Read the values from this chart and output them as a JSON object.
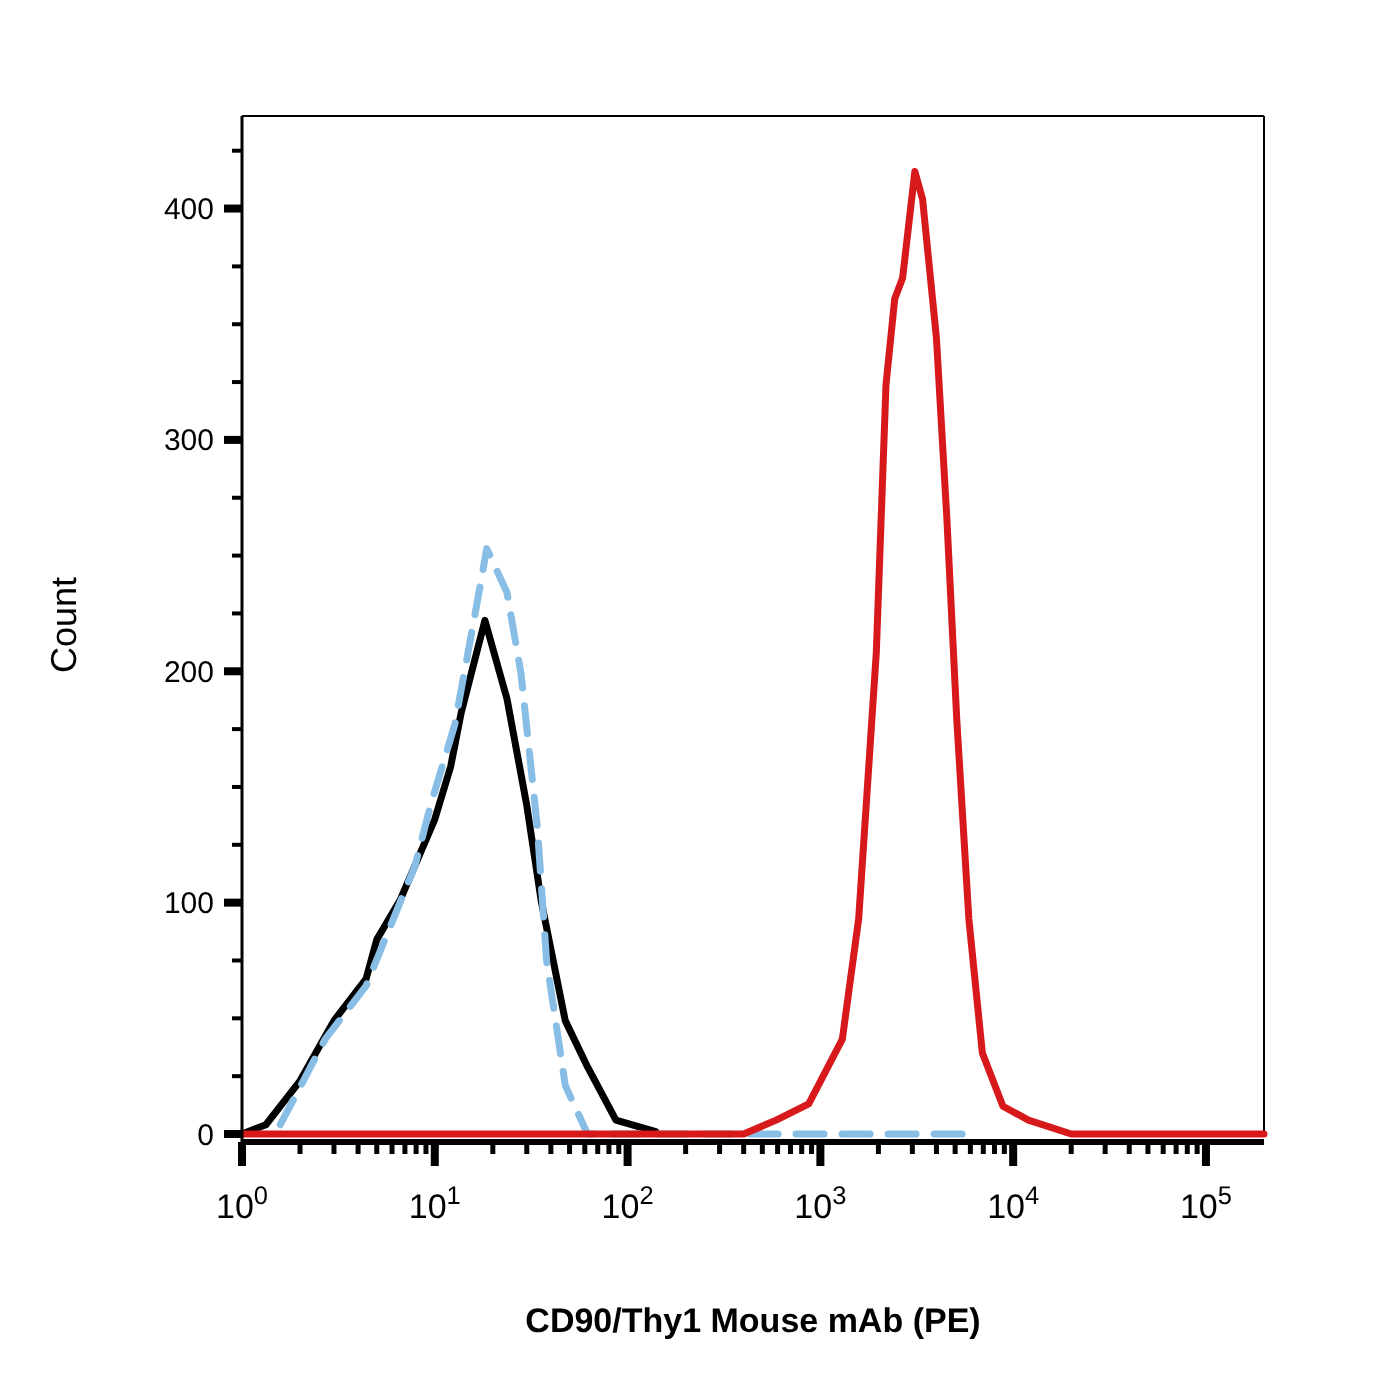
{
  "chart_data": {
    "type": "line",
    "xlabel": "CD90/Thy1 Mouse mAb (PE)",
    "ylabel": "Count",
    "log": "x",
    "xlim": [
      1,
      200000
    ],
    "ylim": [
      0,
      440
    ],
    "xticks": [
      {
        "value": 1,
        "label": "10$^{0}$"
      },
      {
        "value": 2,
        "label": null
      },
      {
        "value": 3,
        "label": null
      },
      {
        "value": 4,
        "label": null
      },
      {
        "value": 5,
        "label": null
      },
      {
        "value": 6,
        "label": null
      },
      {
        "value": 7,
        "label": null
      },
      {
        "value": 8,
        "label": null
      },
      {
        "value": 9,
        "label": null
      },
      {
        "value": 10,
        "label": "10$^{1}$"
      },
      {
        "value": 20,
        "label": null
      },
      {
        "value": 30,
        "label": null
      },
      {
        "value": 40,
        "label": null
      },
      {
        "value": 50,
        "label": null
      },
      {
        "value": 60,
        "label": null
      },
      {
        "value": 70,
        "label": null
      },
      {
        "value": 80,
        "label": null
      },
      {
        "value": 90,
        "label": null
      },
      {
        "value": 100,
        "label": "10$^{2}$"
      },
      {
        "value": 200,
        "label": null
      },
      {
        "value": 300,
        "label": null
      },
      {
        "value": 400,
        "label": null
      },
      {
        "value": 500,
        "label": null
      },
      {
        "value": 600,
        "label": null
      },
      {
        "value": 700,
        "label": null
      },
      {
        "value": 800,
        "label": null
      },
      {
        "value": 900,
        "label": null
      },
      {
        "value": 1000,
        "label": "10$^{3}$"
      },
      {
        "value": 2000,
        "label": null
      },
      {
        "value": 3000,
        "label": null
      },
      {
        "value": 4000,
        "label": null
      },
      {
        "value": 5000,
        "label": null
      },
      {
        "value": 6000,
        "label": null
      },
      {
        "value": 7000,
        "label": null
      },
      {
        "value": 8000,
        "label": null
      },
      {
        "value": 9000,
        "label": null
      },
      {
        "value": 10000,
        "label": "10$^{4}$"
      },
      {
        "value": 20000,
        "label": null
      },
      {
        "value": 30000,
        "label": null
      },
      {
        "value": 40000,
        "label": null
      },
      {
        "value": 50000,
        "label": null
      },
      {
        "value": 60000,
        "label": null
      },
      {
        "value": 70000,
        "label": null
      },
      {
        "value": 80000,
        "label": null
      },
      {
        "value": 90000,
        "label": null
      },
      {
        "value": 100000,
        "label": "10$^{5}$"
      }
    ],
    "yticks": [
      0,
      {
        "value": 25,
        "label": null
      },
      {
        "value": 50,
        "label": null
      },
      {
        "value": 75,
        "label": null
      },
      100,
      {
        "value": 125,
        "label": null
      },
      {
        "value": 150,
        "label": null
      },
      {
        "value": 175,
        "label": null
      },
      200,
      {
        "value": 225,
        "label": null
      },
      {
        "value": 250,
        "label": null
      },
      {
        "value": 275,
        "label": null
      },
      300,
      {
        "value": 325,
        "label": null
      },
      {
        "value": 350,
        "label": null
      },
      {
        "value": 375,
        "label": null
      },
      400,
      {
        "value": 425,
        "label": null
      }
    ],
    "grid": false,
    "marker": "none",
    "series": [
      {
        "color": "#000000",
        "line_style": "solid",
        "x": [
          1,
          1.33,
          2,
          3,
          4.4,
          5,
          6.6,
          10,
          12.1,
          13.7,
          18.2,
          23.7,
          30,
          35.6,
          47.5,
          62,
          87,
          140
        ],
        "values": [
          0,
          4,
          23,
          49,
          67,
          84,
          101,
          136,
          159,
          182,
          222,
          188,
          142,
          101,
          49,
          29,
          6,
          1
        ]
      },
      {
        "color": "#88bde6",
        "line_style": "dashed",
        "x": [
          1.58,
          2.7,
          4.4,
          7.9,
          9.5,
          12.7,
          16.2,
          18.6,
          23.7,
          28,
          34,
          38,
          47.5,
          62,
          100,
          6000
        ],
        "values": [
          4,
          41,
          64,
          116,
          142,
          177,
          225,
          253,
          234,
          199,
          133,
          75,
          21,
          0,
          0,
          0
        ]
      },
      {
        "color": "#d7191c",
        "line_style": "solid",
        "x": [
          1,
          400,
          590,
          870,
          1300,
          1580,
          1950,
          2190,
          2430,
          2670,
          3090,
          3390,
          4000,
          4530,
          5100,
          5890,
          6920,
          8850,
          12000,
          20000,
          200000
        ],
        "values": [
          0,
          0,
          6,
          13,
          41,
          93,
          208,
          324,
          361,
          370,
          416,
          404,
          344,
          266,
          179,
          93,
          35,
          12,
          6,
          0,
          0
        ]
      }
    ]
  }
}
